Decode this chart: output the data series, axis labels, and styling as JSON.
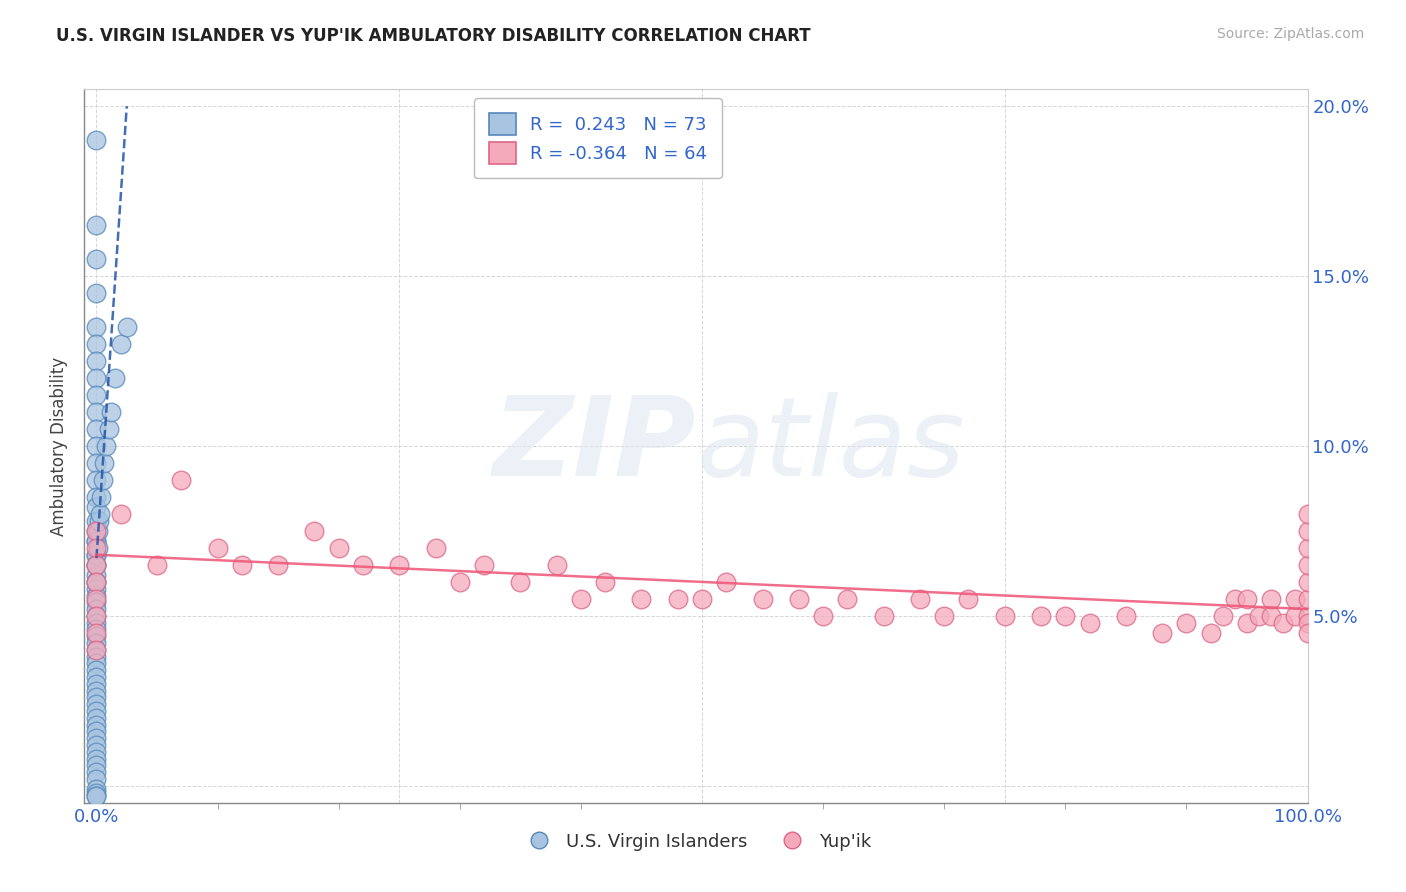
{
  "title": "U.S. VIRGIN ISLANDER VS YUP'IK AMBULATORY DISABILITY CORRELATION CHART",
  "source": "Source: ZipAtlas.com",
  "ylabel": "Ambulatory Disability",
  "xlim": [
    -0.01,
    1.0
  ],
  "ylim": [
    -0.005,
    0.205
  ],
  "blue_color": "#A8C4E0",
  "blue_edge": "#5588BB",
  "pink_color": "#F4AABA",
  "pink_edge": "#DD6688",
  "trend_blue_color": "#2255AA",
  "trend_pink_color": "#EE5577",
  "R_blue": 0.243,
  "N_blue": 73,
  "R_pink": -0.364,
  "N_pink": 64,
  "legend_blue": "U.S. Virgin Islanders",
  "legend_pink": "Yup'ik",
  "blue_points_x": [
    0.0,
    0.0,
    0.0,
    0.0,
    0.0,
    0.0,
    0.0,
    0.0,
    0.0,
    0.0,
    0.0,
    0.0,
    0.0,
    0.0,
    0.0,
    0.0,
    0.0,
    0.0,
    0.0,
    0.0,
    0.0,
    0.0,
    0.0,
    0.0,
    0.0,
    0.0,
    0.0,
    0.0,
    0.0,
    0.0,
    0.0,
    0.0,
    0.0,
    0.0,
    0.0,
    0.0,
    0.0,
    0.0,
    0.0,
    0.0,
    0.0,
    0.0,
    0.0,
    0.0,
    0.0,
    0.0,
    0.0,
    0.0,
    0.0,
    0.0,
    0.0,
    0.0,
    0.0,
    0.0,
    0.0,
    0.0,
    0.0,
    0.0,
    0.0,
    0.0,
    0.001,
    0.001,
    0.002,
    0.003,
    0.004,
    0.005,
    0.006,
    0.008,
    0.01,
    0.012,
    0.015,
    0.02,
    0.025
  ],
  "blue_points_y": [
    0.19,
    0.165,
    0.155,
    0.145,
    0.135,
    0.13,
    0.125,
    0.12,
    0.115,
    0.11,
    0.105,
    0.1,
    0.095,
    0.09,
    0.085,
    0.082,
    0.078,
    0.075,
    0.072,
    0.068,
    0.065,
    0.062,
    0.06,
    0.058,
    0.056,
    0.054,
    0.052,
    0.05,
    0.048,
    0.046,
    0.044,
    0.042,
    0.04,
    0.038,
    0.036,
    0.034,
    0.032,
    0.03,
    0.028,
    0.026,
    0.024,
    0.022,
    0.02,
    0.018,
    0.016,
    0.014,
    0.012,
    0.01,
    0.008,
    0.006,
    0.004,
    0.002,
    -0.001,
    -0.002,
    -0.003,
    -0.003,
    0.072,
    0.068,
    0.065,
    0.06,
    0.07,
    0.075,
    0.078,
    0.08,
    0.085,
    0.09,
    0.095,
    0.1,
    0.105,
    0.11,
    0.12,
    0.13,
    0.135
  ],
  "pink_points_x": [
    0.0,
    0.0,
    0.0,
    0.0,
    0.0,
    0.0,
    0.0,
    0.0,
    0.02,
    0.05,
    0.07,
    0.1,
    0.12,
    0.15,
    0.18,
    0.2,
    0.22,
    0.25,
    0.28,
    0.3,
    0.32,
    0.35,
    0.38,
    0.4,
    0.42,
    0.45,
    0.48,
    0.5,
    0.52,
    0.55,
    0.58,
    0.6,
    0.62,
    0.65,
    0.68,
    0.7,
    0.72,
    0.75,
    0.78,
    0.8,
    0.82,
    0.85,
    0.88,
    0.9,
    0.92,
    0.93,
    0.94,
    0.95,
    0.95,
    0.96,
    0.97,
    0.97,
    0.98,
    0.99,
    0.99,
    1.0,
    1.0,
    1.0,
    1.0,
    1.0,
    1.0,
    1.0,
    1.0,
    1.0
  ],
  "pink_points_y": [
    0.075,
    0.07,
    0.065,
    0.06,
    0.055,
    0.05,
    0.045,
    0.04,
    0.08,
    0.065,
    0.09,
    0.07,
    0.065,
    0.065,
    0.075,
    0.07,
    0.065,
    0.065,
    0.07,
    0.06,
    0.065,
    0.06,
    0.065,
    0.055,
    0.06,
    0.055,
    0.055,
    0.055,
    0.06,
    0.055,
    0.055,
    0.05,
    0.055,
    0.05,
    0.055,
    0.05,
    0.055,
    0.05,
    0.05,
    0.05,
    0.048,
    0.05,
    0.045,
    0.048,
    0.045,
    0.05,
    0.055,
    0.048,
    0.055,
    0.05,
    0.05,
    0.055,
    0.048,
    0.05,
    0.055,
    0.05,
    0.048,
    0.045,
    0.055,
    0.06,
    0.065,
    0.07,
    0.075,
    0.08
  ],
  "blue_trend_x0": 0.0,
  "blue_trend_y0": 0.067,
  "blue_trend_x1": 0.025,
  "blue_trend_y1": 0.2,
  "pink_trend_x0": 0.0,
  "pink_trend_y0": 0.068,
  "pink_trend_x1": 1.0,
  "pink_trend_y1": 0.052
}
